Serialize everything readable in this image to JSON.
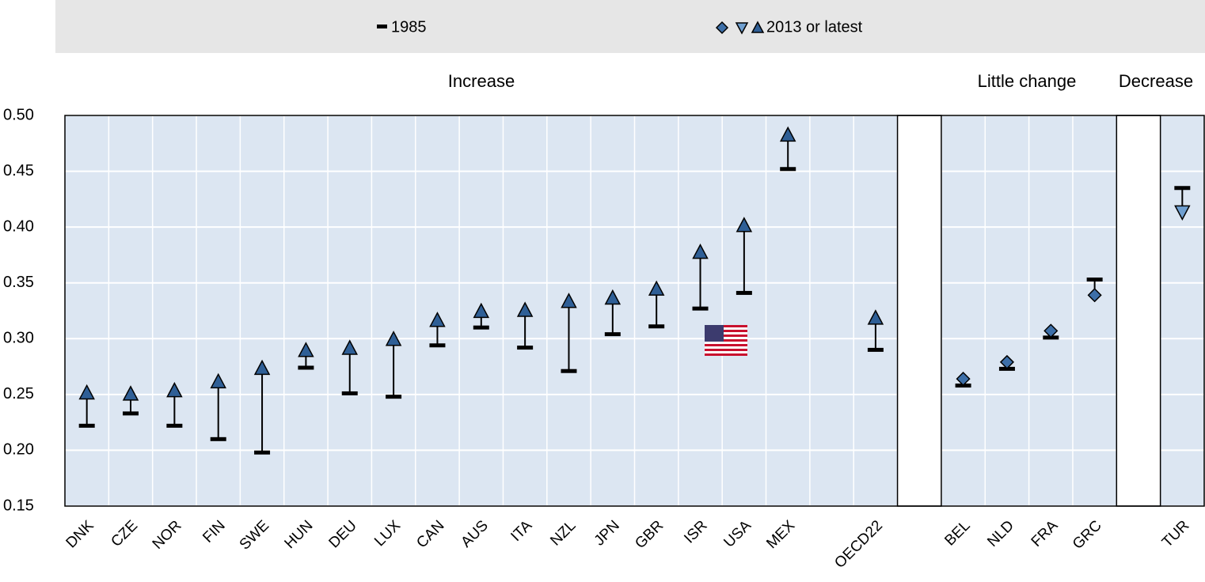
{
  "chart_data": {
    "type": "range-dot",
    "categories": [
      "DNK",
      "CZE",
      "NOR",
      "FIN",
      "SWE",
      "HUN",
      "DEU",
      "LUX",
      "CAN",
      "AUS",
      "ITA",
      "NZL",
      "JPN",
      "GBR",
      "ISR",
      "USA",
      "MEX",
      null,
      "OECD22",
      null,
      "BEL",
      "NLD",
      "FRA",
      "GRC",
      null,
      "TUR"
    ],
    "series": [
      {
        "name": "1985",
        "color": "#000000",
        "values": [
          0.222,
          0.233,
          0.222,
          0.21,
          0.198,
          0.274,
          0.251,
          0.248,
          0.294,
          0.31,
          0.292,
          0.271,
          0.304,
          0.311,
          0.327,
          0.341,
          0.452,
          null,
          0.29,
          null,
          0.258,
          0.273,
          0.301,
          0.353,
          null,
          0.435
        ]
      },
      {
        "name": "2013 or latest",
        "color": "#2f5f96",
        "values": [
          0.251,
          0.25,
          0.253,
          0.261,
          0.273,
          0.289,
          0.291,
          0.299,
          0.316,
          0.324,
          0.325,
          0.333,
          0.336,
          0.344,
          0.377,
          0.401,
          0.482,
          null,
          0.318,
          null,
          0.264,
          0.279,
          0.307,
          0.339,
          null,
          0.414
        ],
        "markers": [
          "up",
          "up",
          "up",
          "up",
          "up",
          "up",
          "up",
          "up",
          "up",
          "up",
          "up",
          "up",
          "up",
          "up",
          "up",
          "up",
          "up",
          null,
          "up",
          null,
          "diamond",
          "diamond",
          "diamond",
          "diamond",
          null,
          "down"
        ]
      }
    ],
    "annotations": [
      "Increase",
      "Little change",
      "Decrease"
    ],
    "ylim": [
      0.15,
      0.5
    ],
    "yticks": [
      {
        "value": 0.15,
        "label": "0.15"
      },
      {
        "value": 0.2,
        "label": "0.20"
      },
      {
        "value": 0.25,
        "label": "0.25"
      },
      {
        "value": 0.3,
        "label": "0.30"
      },
      {
        "value": 0.35,
        "label": "0.35"
      },
      {
        "value": 0.4,
        "label": "0.40"
      },
      {
        "value": 0.45,
        "label": "0.45"
      },
      {
        "value": 0.5,
        "label": "0.50"
      }
    ],
    "grid": true
  }
}
